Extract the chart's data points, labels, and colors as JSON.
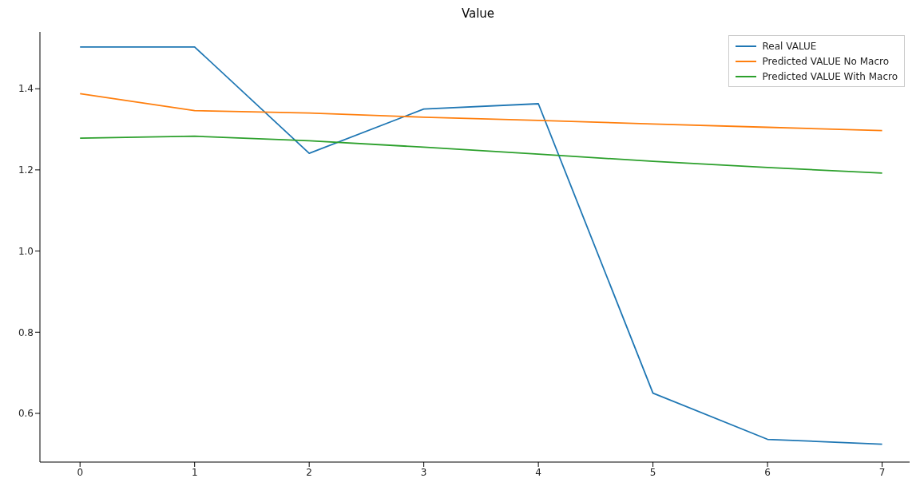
{
  "chart_data": {
    "type": "line",
    "title": "Value",
    "x": [
      0,
      1,
      2,
      3,
      4,
      5,
      6,
      7
    ],
    "series": [
      {
        "name": "Real VALUE",
        "color": "#1f77b4",
        "values": [
          1.503,
          1.503,
          1.241,
          1.35,
          1.363,
          0.65,
          0.536,
          0.524
        ]
      },
      {
        "name": "Predicted VALUE No Macro",
        "color": "#ff7f0e",
        "values": [
          1.388,
          1.346,
          1.34,
          1.33,
          1.322,
          1.313,
          1.305,
          1.297
        ]
      },
      {
        "name": "Predicted VALUE With Macro",
        "color": "#2ca02c",
        "values": [
          1.278,
          1.283,
          1.272,
          1.256,
          1.239,
          1.221,
          1.206,
          1.192
        ]
      }
    ],
    "xlim": [
      -0.35,
      7.24
    ],
    "xticks": [
      0,
      1,
      2,
      3,
      4,
      5,
      6,
      7
    ],
    "ylim": [
      0.48,
      1.54
    ],
    "yticks": [
      {
        "value": 0.6,
        "label": "0.6"
      },
      {
        "value": 0.8,
        "label": "0.8"
      },
      {
        "value": 1,
        "label": "1.0"
      },
      {
        "value": 1.2,
        "label": "1.2"
      },
      {
        "value": 1.4,
        "label": "1.4"
      }
    ],
    "grid": false,
    "legend": "top right",
    "marker": "none",
    "line_style": "solid"
  }
}
